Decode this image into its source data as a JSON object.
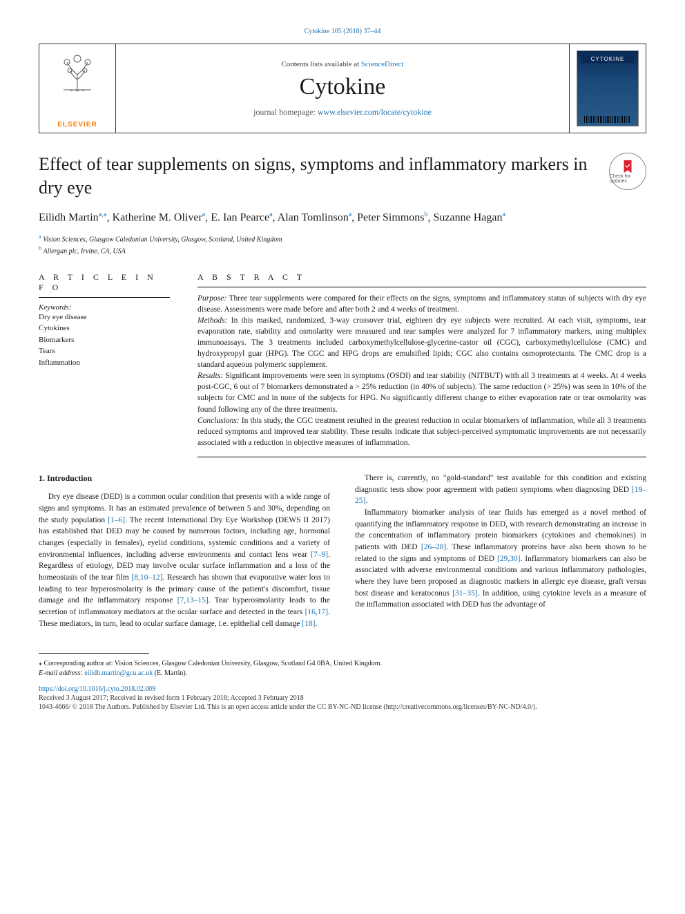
{
  "doi_header": "Cytokine 105 (2018) 37–44",
  "masthead": {
    "contents_prefix": "Contents lists available at ",
    "contents_link": "ScienceDirect",
    "journal": "Cytokine",
    "homepage_prefix": "journal homepage: ",
    "homepage_link": "www.elsevier.com/locate/cytokine",
    "publisher": "ELSEVIER"
  },
  "title": "Effect of tear supplements on signs, symptoms and inflammatory markers in dry eye",
  "updates_badge": "Check for updates",
  "authors_html": "Eilidh Martin<sup>a,⁎</sup>, Katherine M. Oliver<sup>a</sup>, E. Ian Pearce<sup>a</sup>, Alan Tomlinson<sup>a</sup>, Peter Simmons<sup>b</sup>, Suzanne Hagan<sup>a</sup>",
  "affiliations": {
    "a": "Vision Sciences, Glasgow Caledonian University, Glasgow, Scotland, United Kingdom",
    "b": "Allergan plc, Irvine, CA, USA"
  },
  "article_info_heading": "A R T I C L E   I N F O",
  "keywords_label": "Keywords:",
  "keywords": [
    "Dry eye disease",
    "Cytokines",
    "Biomarkers",
    "Tears",
    "Inflammation"
  ],
  "abstract_heading": "A B S T R A C T",
  "abstract": {
    "purpose_label": "Purpose:",
    "purpose": " Three tear supplements were compared for their effects on the signs, symptoms and inflammatory status of subjects with dry eye disease. Assessments were made before and after both 2 and 4 weeks of treatment.",
    "methods_label": "Methods:",
    "methods": " In this masked, randomized, 3-way crossover trial, eighteen dry eye subjects were recruited. At each visit, symptoms, tear evaporation rate, stability and osmolarity were measured and tear samples were analyzed for 7 inflammatory markers, using multiplex immunoassays. The 3 treatments included carboxymethylcellulose-glycerine-castor oil (CGC), carboxymethylcellulose (CMC) and hydroxypropyl guar (HPG). The CGC and HPG drops are emulsified lipids; CGC also contains osmoprotectants. The CMC drop is a standard aqueous polymeric supplement.",
    "results_label": "Results:",
    "results": " Significant improvements were seen in symptoms (OSDI) and tear stability (NITBUT) with all 3 treatments at 4 weeks. At 4 weeks post-CGC, 6 out of 7 biomarkers demonstrated a > 25% reduction (in 40% of subjects). The same reduction (> 25%) was seen in 10% of the subjects for CMC and in none of the subjects for HPG. No significantly different change to either evaporation rate or tear osmolarity was found following any of the three treatments.",
    "conclusions_label": "Conclusions:",
    "conclusions": " In this study, the CGC treatment resulted in the greatest reduction in ocular biomarkers of inflammation, while all 3 treatments reduced symptoms and improved tear stability. These results indicate that subject-perceived symptomatic improvements are not necessarily associated with a reduction in objective measures of inflammation."
  },
  "intro_heading": "1. Introduction",
  "intro": {
    "p1a": "Dry eye disease (DED) is a common ocular condition that presents with a wide range of signs and symptoms. It has an estimated prevalence of between 5 and 30%, depending on the study population ",
    "r1": "[1–6]",
    "p1b": ". The recent International Dry Eye Workshop (DEWS II 2017) has established that DED may be caused by numerous factors, including age, hormonal changes (especially in females), eyelid conditions, systemic conditions and a variety of environmental influences, including adverse environments and contact lens wear ",
    "r2": "[7–9]",
    "p1c": ". Regardless of etiology, DED may involve ocular surface inflammation and a loss of the homeostasis of the tear film ",
    "r3": "[8,10–12]",
    "p1d": ". Research has shown that evaporative water loss to leading to tear hyperosmolarity is the primary cause of the patient's discomfort, tissue damage and the inflammatory response ",
    "r4": "[7,13–15]",
    "p1e": ". Tear hyperosmolarity leads to the secretion of inflammatory mediators at the ocular surface and detected in the tears ",
    "r5": "[16,17]",
    "p1f": ". These mediators, in turn, lead to ocular surface damage, i.e. epithelial cell damage ",
    "r6": "[18]",
    "p1g": ".",
    "p2a": "There is, currently, no \"gold-standard\" test available for this condition and existing diagnostic tests show poor agreement with patient symptoms when diagnosing DED ",
    "r7": "[19–25]",
    "p2b": ".",
    "p3a": "Inflammatory biomarker analysis of tear fluids has emerged as a novel method of quantifying the inflammatory response in DED, with research demonstrating an increase in the concentration of inflammatory protein biomarkers (cytokines and chemokines) in patients with DED ",
    "r8": "[26–28]",
    "p3b": ". These inflammatory proteins have also been shown to be related to the signs and symptoms of DED ",
    "r9": "[29,30]",
    "p3c": ". Inflammatory biomarkers can also be associated with adverse environmental conditions and various inflammatory pathologies, where they have been proposed as diagnostic markers in allergic eye disease, graft versus host disease and keratoconus ",
    "r10": "[31–35]",
    "p3d": ". In addition, using cytokine levels as a measure of the inflammation associated with DED has the advantage of"
  },
  "footnotes": {
    "corr": "⁎ Corresponding author at: Vision Sciences, Glasgow Caledonian University, Glasgow, Scotland G4 0BA, United Kingdom.",
    "email_label": "E-mail address: ",
    "email": "eilidh.martin@gcu.ac.uk",
    "email_suffix": " (E. Martin)."
  },
  "doi_link": "https://doi.org/10.1016/j.cyto.2018.02.009",
  "received": "Received 3 August 2017; Received in revised form 1 February 2018; Accepted 3 February 2018",
  "copyright": "1043-4666/ © 2018 The Authors. Published by Elsevier Ltd. This is an open access article under the CC BY-NC-ND license (http://creativecommons.org/licenses/BY-NC-ND/4.0/).",
  "colors": {
    "link": "#1a6fb0",
    "orange": "#ff7a00"
  }
}
